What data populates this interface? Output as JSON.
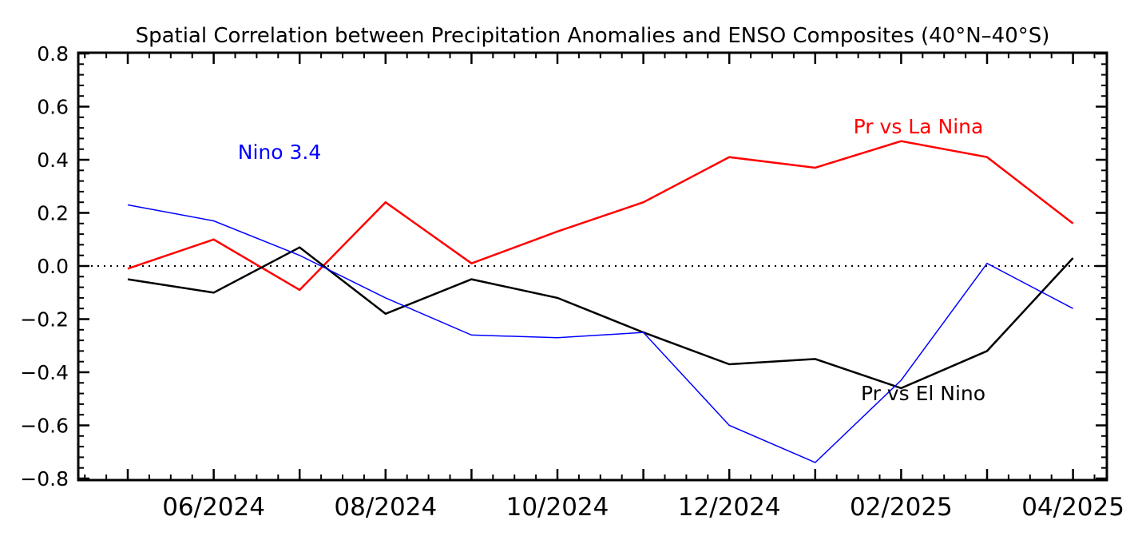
{
  "chart_data": {
    "type": "line",
    "title": "Spatial Correlation between Precipitation Anomalies and ENSO Composites (40°N–40°S)",
    "xlabel": "",
    "ylabel": "",
    "ylim": [
      -0.8,
      0.8
    ],
    "yticks": [
      -0.8,
      -0.6,
      -0.4,
      -0.2,
      0.0,
      0.2,
      0.4,
      0.6,
      0.8
    ],
    "ytick_labels": [
      "−0.8",
      "−0.6",
      "−0.4",
      "−0.2",
      "0.0",
      "0.2",
      "0.4",
      "0.6",
      "0.8"
    ],
    "x": [
      "05/2024",
      "06/2024",
      "07/2024",
      "08/2024",
      "09/2024",
      "10/2024",
      "11/2024",
      "12/2024",
      "01/2025",
      "02/2025",
      "03/2025",
      "04/2025"
    ],
    "xtick_labels": [
      "06/2024",
      "08/2024",
      "10/2024",
      "12/2024",
      "02/2025",
      "04/2025"
    ],
    "zero_line": "dotted",
    "series": [
      {
        "name": "Pr vs La Nina",
        "color": "#ff0000",
        "values": [
          -0.01,
          0.1,
          -0.09,
          0.24,
          0.01,
          0.13,
          0.24,
          0.41,
          0.37,
          0.47,
          0.41,
          0.16
        ]
      },
      {
        "name": "Pr vs El Nino",
        "color": "#000000",
        "values": [
          -0.05,
          -0.1,
          0.07,
          -0.18,
          -0.05,
          -0.12,
          -0.25,
          -0.37,
          -0.35,
          -0.46,
          -0.32,
          0.03
        ]
      },
      {
        "name": "Nino 3.4",
        "color": "#0000ff",
        "values": [
          0.23,
          0.17,
          0.04,
          -0.12,
          -0.26,
          -0.27,
          -0.25,
          -0.6,
          -0.74,
          -0.43,
          0.01,
          -0.16
        ]
      }
    ],
    "annotations": [
      {
        "text": "Pr vs La Nina",
        "color": "#ff0000"
      },
      {
        "text": "Nino 3.4",
        "color": "#0000ff"
      },
      {
        "text": "Pr vs El Nino",
        "color": "#000000"
      }
    ]
  }
}
